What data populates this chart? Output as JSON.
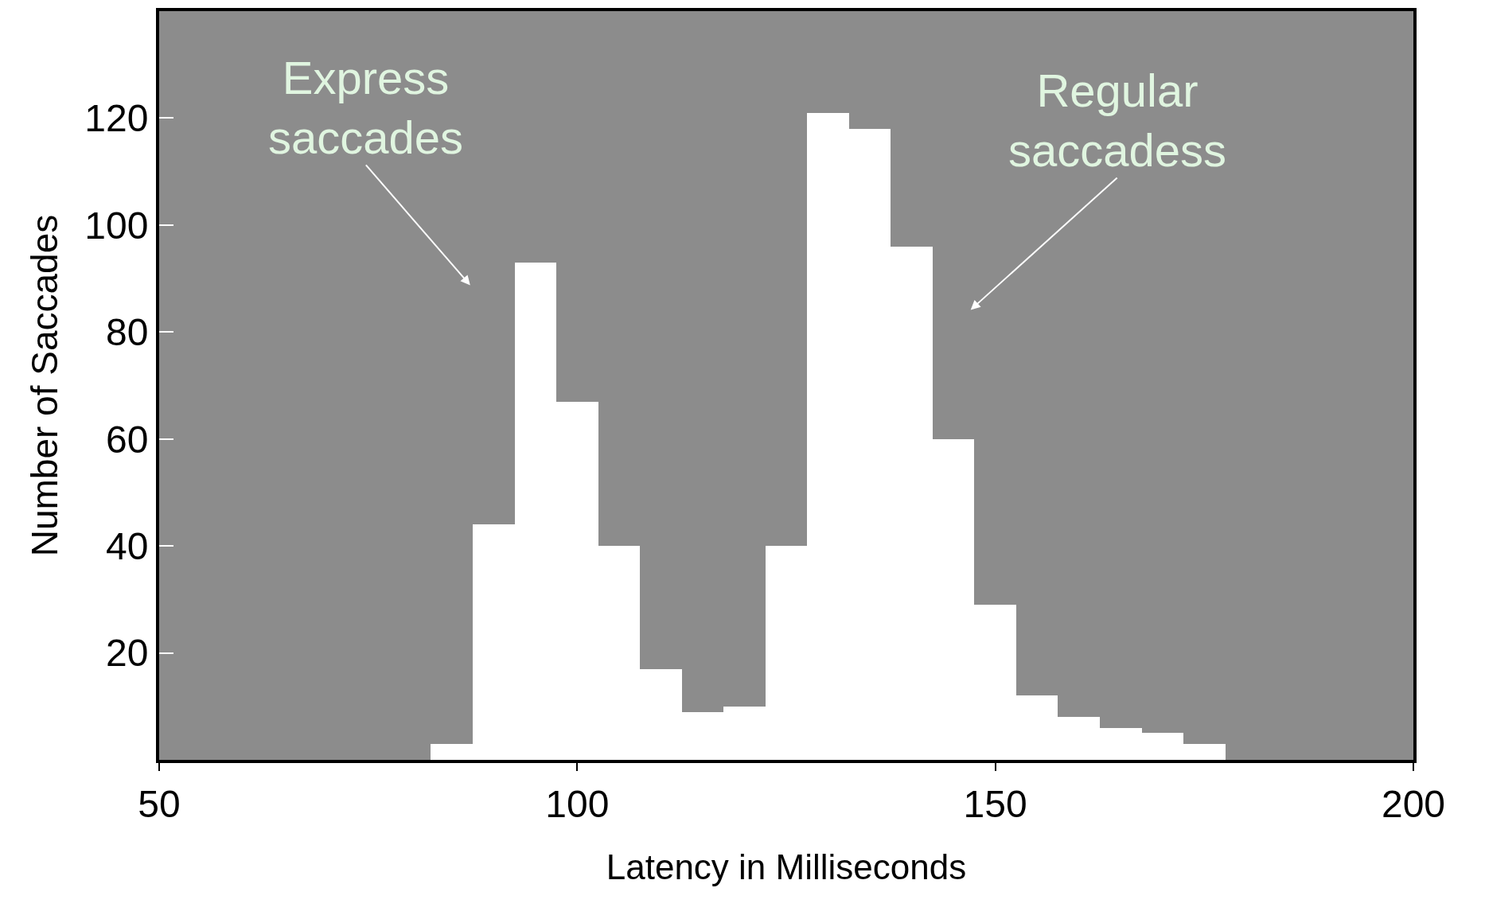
{
  "chart_data": {
    "type": "histogram",
    "xlabel": "Latency in Milliseconds",
    "ylabel": "Number of Saccades",
    "bins": [
      82.5,
      87.5,
      92.5,
      97.5,
      102.5,
      107.5,
      112.5,
      117.5,
      122.5,
      127.5,
      132.5,
      137.5,
      142.5,
      147.5,
      152.5,
      157.5,
      162.5,
      167.5,
      172.5,
      177.5
    ],
    "values": [
      3,
      44,
      93,
      67,
      40,
      17,
      9,
      10,
      40,
      121,
      118,
      96,
      60,
      29,
      12,
      8,
      6,
      5,
      3
    ],
    "color": "#ffffff",
    "xlim": [
      50,
      200
    ],
    "xticks": [
      50,
      100,
      150,
      200
    ],
    "ylim": [
      0,
      140
    ],
    "yticks": [
      20,
      40,
      60,
      80,
      100,
      120
    ],
    "grid": false,
    "annotations": [
      "Express\nsaccades",
      "Regular\nsaccadess"
    ]
  }
}
